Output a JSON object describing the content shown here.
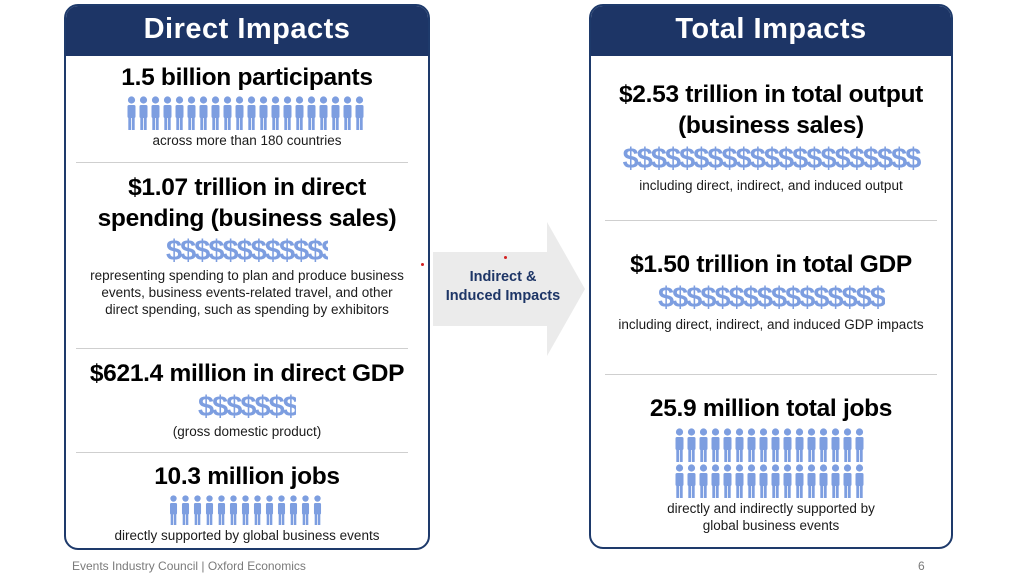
{
  "direct": {
    "title": "Direct Impacts",
    "participants": {
      "headline": "1.5 billion participants",
      "sub": "across more than 180 countries"
    },
    "spending": {
      "headline_1": "$1.07 trillion in direct",
      "headline_2": "spending (business sales)",
      "sub_1": "representing spending to plan and produce business",
      "sub_2": "events, business events-related travel, and other",
      "sub_3": "direct spending, such as spending by exhibitors"
    },
    "gdp": {
      "headline": "$621.4 million in direct GDP",
      "sub": "(gross domestic product)"
    },
    "jobs": {
      "headline": "10.3 million jobs",
      "sub": "directly supported by global business events"
    }
  },
  "arrow": {
    "line_1": "Indirect &",
    "line_2": "Induced Impacts"
  },
  "total": {
    "title": "Total Impacts",
    "output": {
      "headline_1": "$2.53 trillion in total output",
      "headline_2": "(business sales)",
      "sub": "including direct, indirect, and induced output"
    },
    "gdp": {
      "headline": "$1.50 trillion in total GDP",
      "sub": "including direct, indirect, and induced GDP impacts"
    },
    "jobs": {
      "headline": "25.9 million total jobs",
      "sub_1": "directly and indirectly supported by",
      "sub_2": "global business events"
    }
  },
  "icons": {
    "participants_people": "$$$$$$$$$$$$$$$$$$$$",
    "spending_dollars": "$$$$$$$$$$$$",
    "gdp_dollars": "$$$$$$$$",
    "output_dollars": "$$$$$$$$$$$$$$$$$$$$$",
    "total_gdp_dollars": "$$$$$$$$$$$$$$$$",
    "person_icon": "person-icon"
  },
  "footer": {
    "source": "Events Industry Council | Oxford Economics",
    "page": "6"
  },
  "colors": {
    "navy": "#1d3566",
    "icon_blue": "#7d9ee0",
    "arrow_gray": "#ebebeb"
  }
}
